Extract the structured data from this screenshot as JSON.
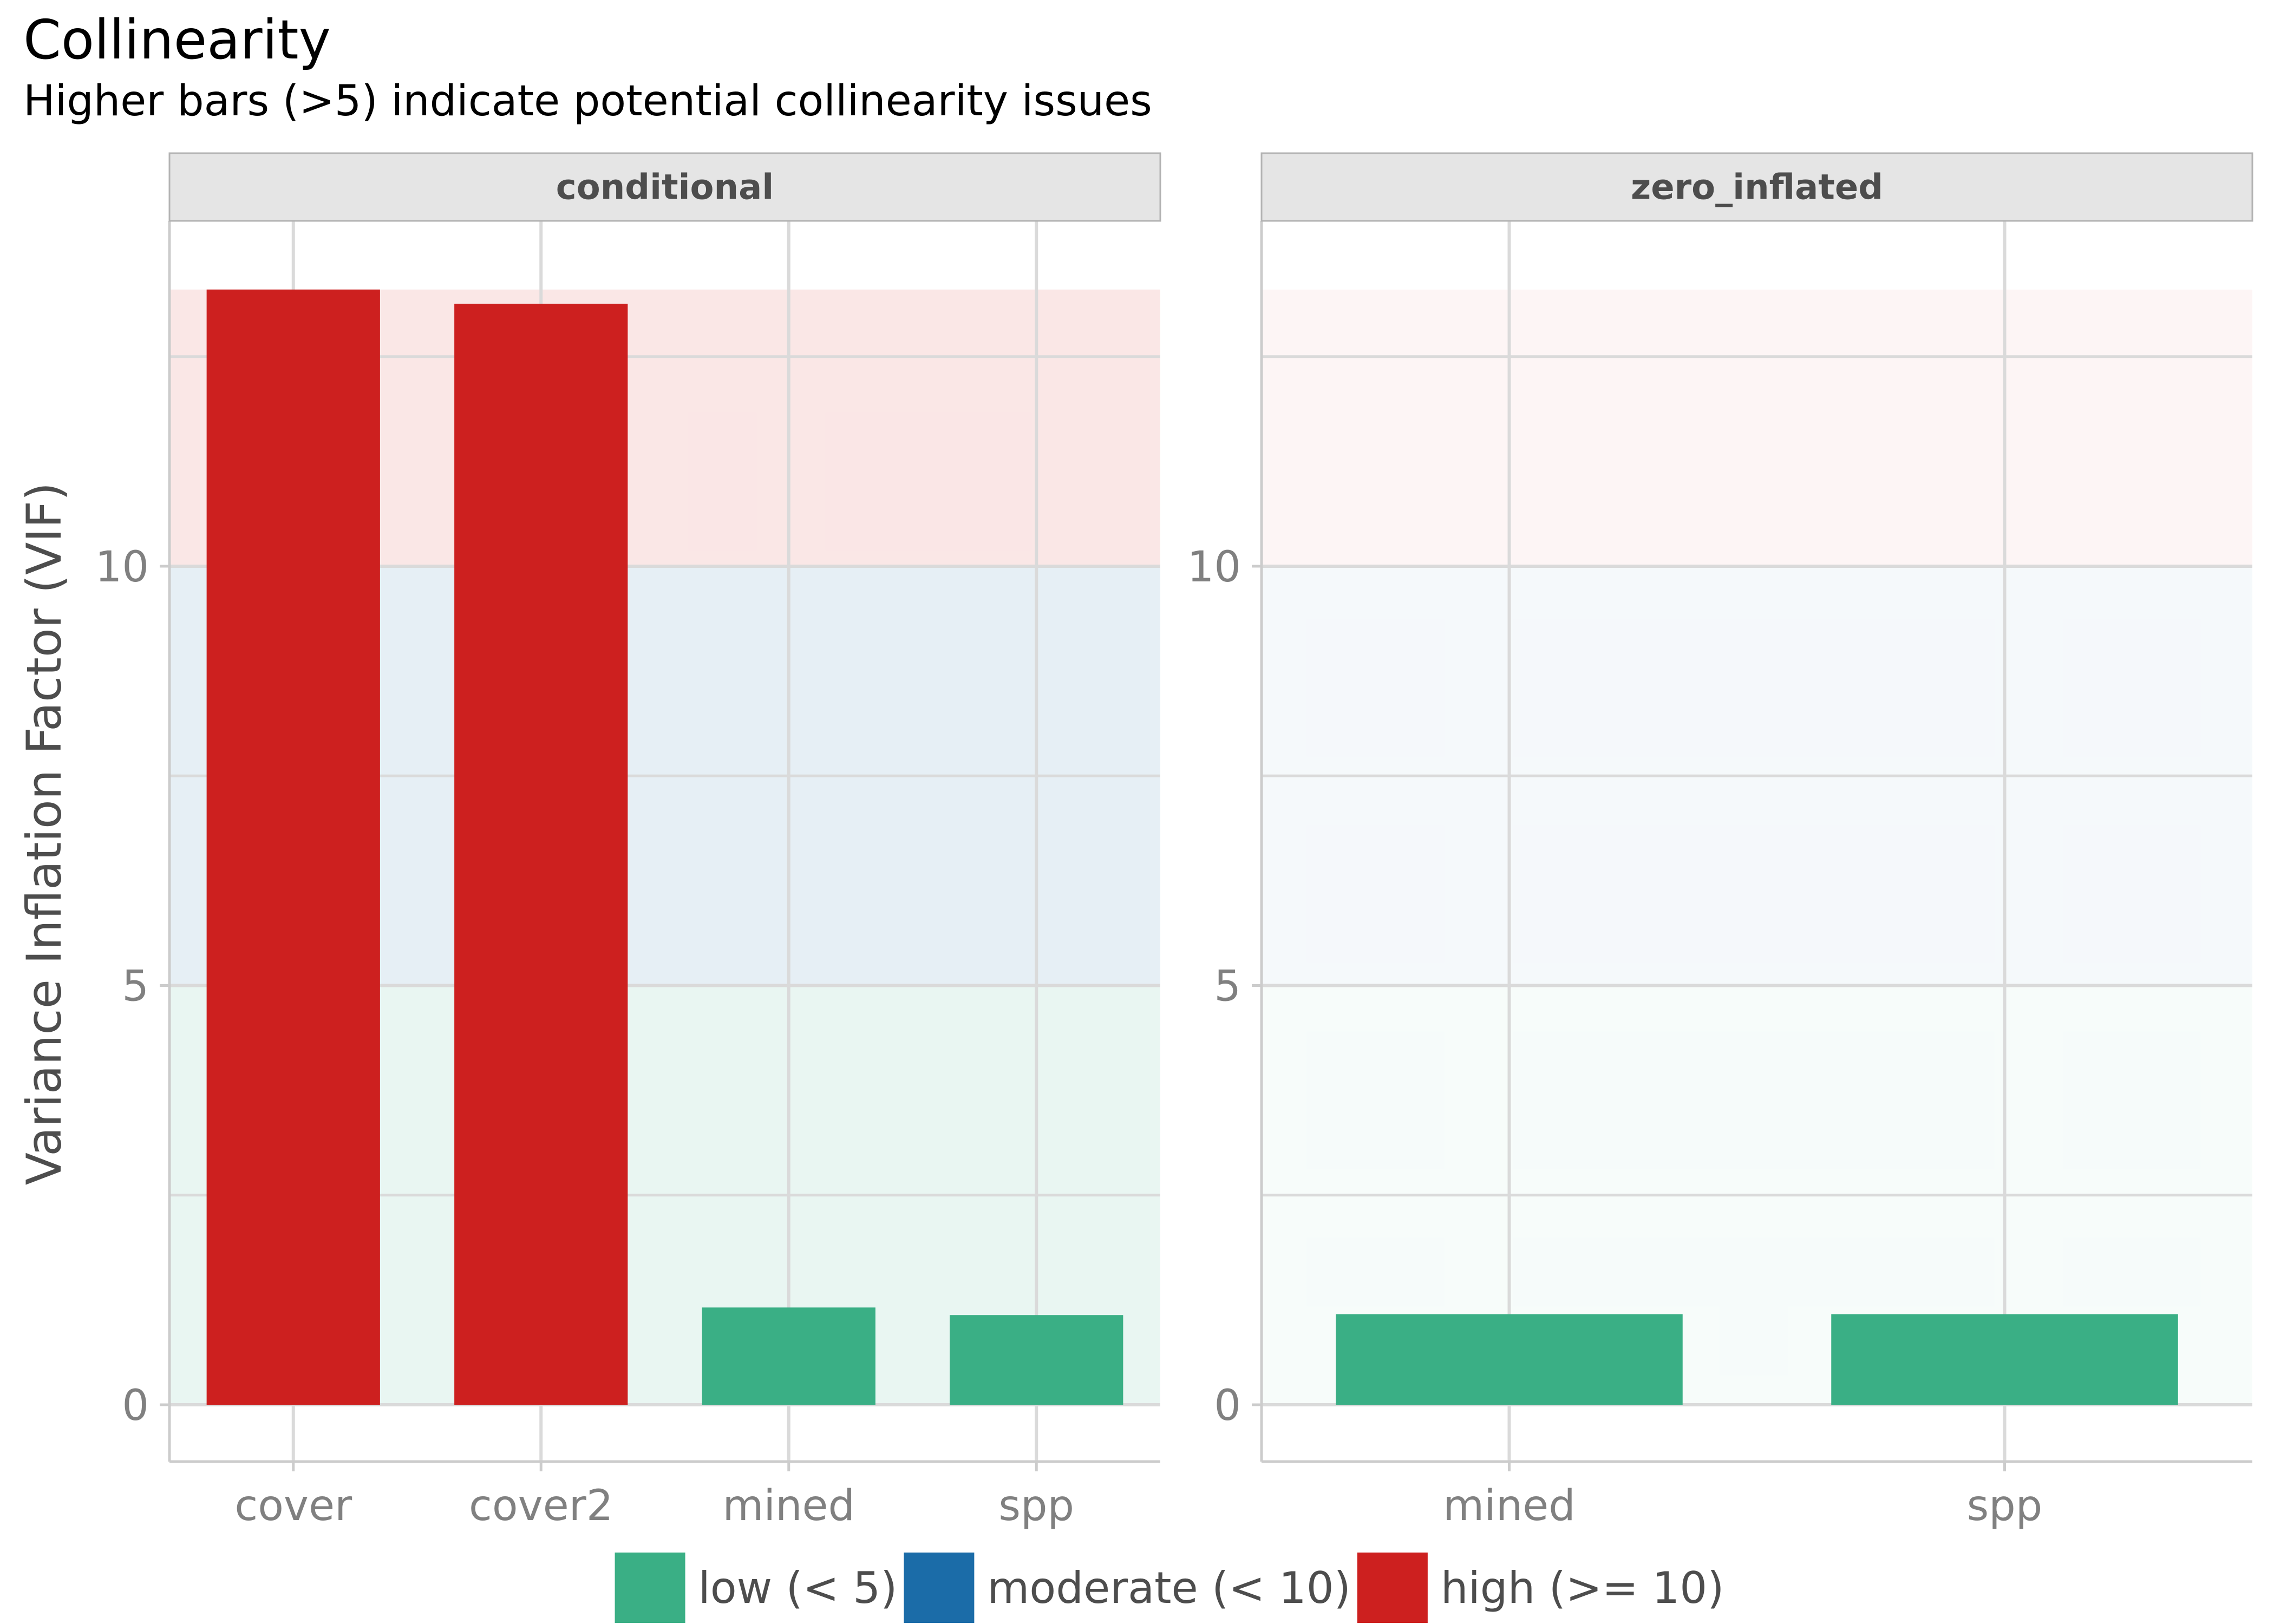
{
  "chart_data": {
    "type": "bar",
    "title": "Collinearity",
    "subtitle": "Higher bars (>5) indicate potential collinearity issues",
    "ylabel": "Variance Inflation Factor (VIF)",
    "xlabel": "",
    "ylim": [
      -0.65,
      14
    ],
    "yticks": [
      0,
      5,
      10
    ],
    "grid": true,
    "legend_position": "bottom",
    "zones": [
      {
        "name": "low",
        "from": 0,
        "to": 5,
        "color": "#3aaf85"
      },
      {
        "name": "moderate",
        "from": 5,
        "to": 10,
        "color": "#1b6ca8"
      },
      {
        "name": "high",
        "from": 10,
        "to": 13.3,
        "color": "#cd201f"
      }
    ],
    "legend": [
      {
        "label": "low (< 5)",
        "color": "#3aaf85"
      },
      {
        "label": "moderate (< 10)",
        "color": "#1b6ca8"
      },
      {
        "label": "high (>= 10)",
        "color": "#cd201f"
      }
    ],
    "panels": [
      {
        "name": "conditional",
        "categories": [
          "cover",
          "cover2",
          "mined",
          "spp"
        ],
        "values": [
          13.3,
          13.13,
          1.16,
          1.07
        ],
        "levels": [
          "high",
          "high",
          "low",
          "low"
        ]
      },
      {
        "name": "zero_inflated",
        "categories": [
          "mined",
          "spp"
        ],
        "values": [
          1.08,
          1.08
        ],
        "levels": [
          "low",
          "low"
        ]
      }
    ]
  }
}
